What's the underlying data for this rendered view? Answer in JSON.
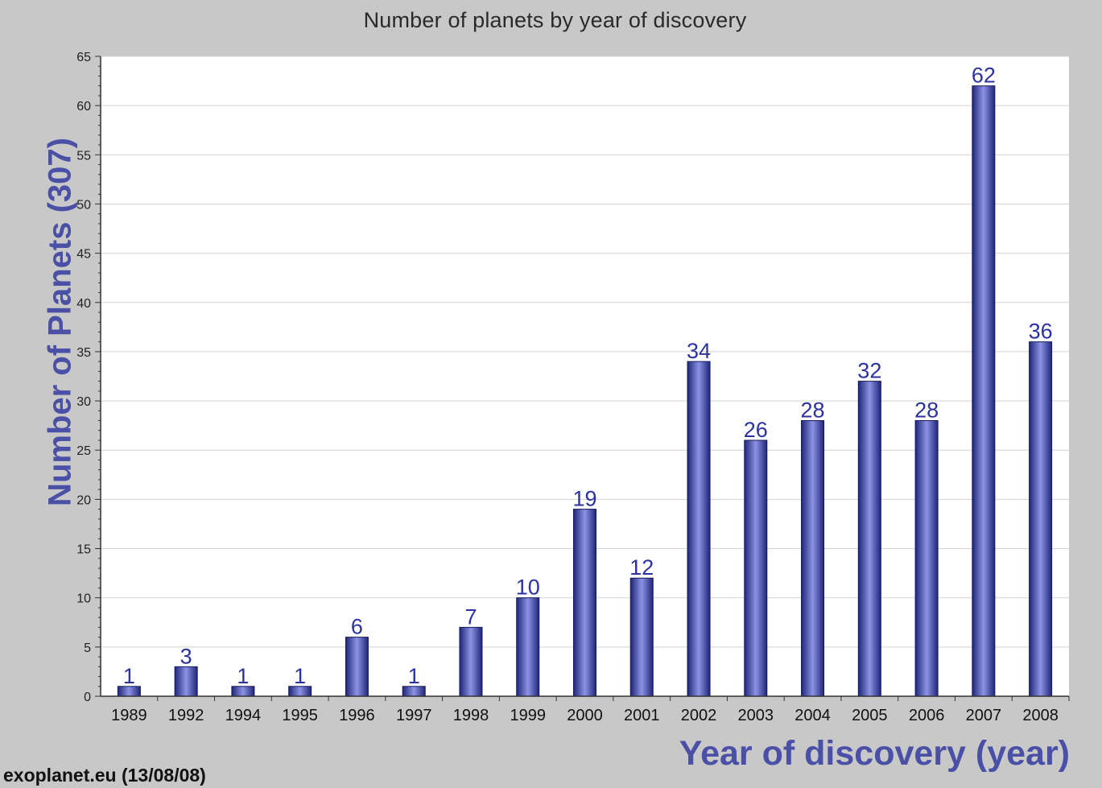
{
  "chart_data": {
    "type": "bar",
    "title": "Number of planets by year of discovery",
    "xlabel": "Year of discovery (year)",
    "ylabel": "Number of Planets (307)",
    "categories": [
      "1989",
      "1992",
      "1994",
      "1995",
      "1996",
      "1997",
      "1998",
      "1999",
      "2000",
      "2001",
      "2002",
      "2003",
      "2004",
      "2005",
      "2006",
      "2007",
      "2008"
    ],
    "values": [
      1,
      3,
      1,
      1,
      6,
      1,
      7,
      10,
      19,
      12,
      34,
      26,
      28,
      32,
      28,
      62,
      36
    ],
    "ylim": [
      0,
      65
    ],
    "yticks": [
      0,
      5,
      10,
      15,
      20,
      25,
      30,
      35,
      40,
      45,
      50,
      55,
      60,
      65
    ],
    "grid": true,
    "data_labels": true,
    "colors": {
      "bar": "#2b3190",
      "bar_highlight": "#8c93e6",
      "data_label": "#2b32a0",
      "axis_title": "#4a50a6",
      "plot_background": "#ffffff",
      "panel_background": "#c8c8c8"
    }
  },
  "footer": "exoplanet.eu (13/08/08)"
}
